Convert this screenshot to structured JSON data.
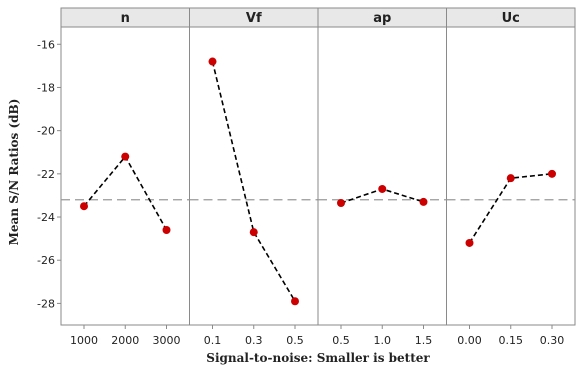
{
  "chart_data": {
    "type": "line",
    "ylabel": "Mean S/N Ratios (dB)",
    "caption": "Signal-to-noise: Smaller is better",
    "ylim": [
      -29,
      -15.2
    ],
    "yticks": [
      -16,
      -18,
      -20,
      -22,
      -24,
      -26,
      -28
    ],
    "yticks_labels": [
      "-16",
      "-18",
      "-20",
      "-22",
      "-24",
      "-26",
      "-28"
    ],
    "reference_line": -23.2,
    "panels": [
      {
        "title": "n",
        "categories": [
          "1000",
          "2000",
          "3000"
        ],
        "values": [
          -23.5,
          -21.2,
          -24.6
        ]
      },
      {
        "title": "Vf",
        "categories": [
          "0.1",
          "0.3",
          "0.5"
        ],
        "values": [
          -16.8,
          -24.7,
          -27.9
        ]
      },
      {
        "title": "ap",
        "categories": [
          "0.5",
          "1.0",
          "1.5"
        ],
        "values": [
          -23.35,
          -22.7,
          -23.3
        ]
      },
      {
        "title": "Uc",
        "categories": [
          "0.00",
          "0.15",
          "0.30"
        ],
        "values": [
          -25.2,
          -22.2,
          -22.0
        ]
      }
    ],
    "colors": {
      "point": "#cc0000",
      "line": "#000000",
      "reference": "#999999",
      "header_bg": "#e8e8e8",
      "frame": "#8a8a8a"
    }
  }
}
